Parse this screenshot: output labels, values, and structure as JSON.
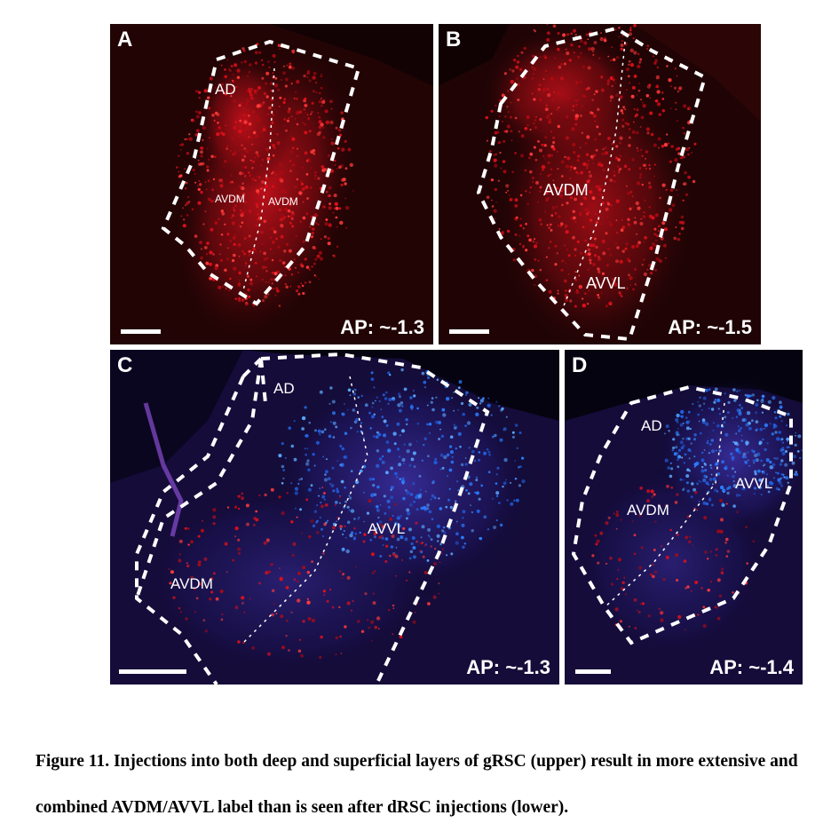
{
  "figure": {
    "panels": {
      "A": {
        "letter": "A",
        "ap": "AP: ~-1.3",
        "regions": {
          "ad": "AD",
          "avdm_left": "AVDM",
          "avdm_right": "AVDM"
        }
      },
      "B": {
        "letter": "B",
        "ap": "AP: ~-1.5",
        "regions": {
          "avdm": "AVDM",
          "avvl": "AVVL"
        }
      },
      "C": {
        "letter": "C",
        "ap": "AP: ~-1.3",
        "regions": {
          "ad": "AD",
          "avvl": "AVVL",
          "avdm": "AVDM"
        }
      },
      "D": {
        "letter": "D",
        "ap": "AP: ~-1.4",
        "regions": {
          "ad": "AD",
          "avvl": "AVVL",
          "avdm": "AVDM"
        }
      }
    },
    "caption": {
      "label": "Figure 11",
      "text": ". Injections into both deep and superficial layers of gRSC (upper) result in more extensive and combined AVDM/AVVL label than is seen after dRSC injections (lower)."
    },
    "colors": {
      "red_label": "#e0101a",
      "blue_label": "#2a7cff",
      "outline": "#ffffff"
    }
  }
}
